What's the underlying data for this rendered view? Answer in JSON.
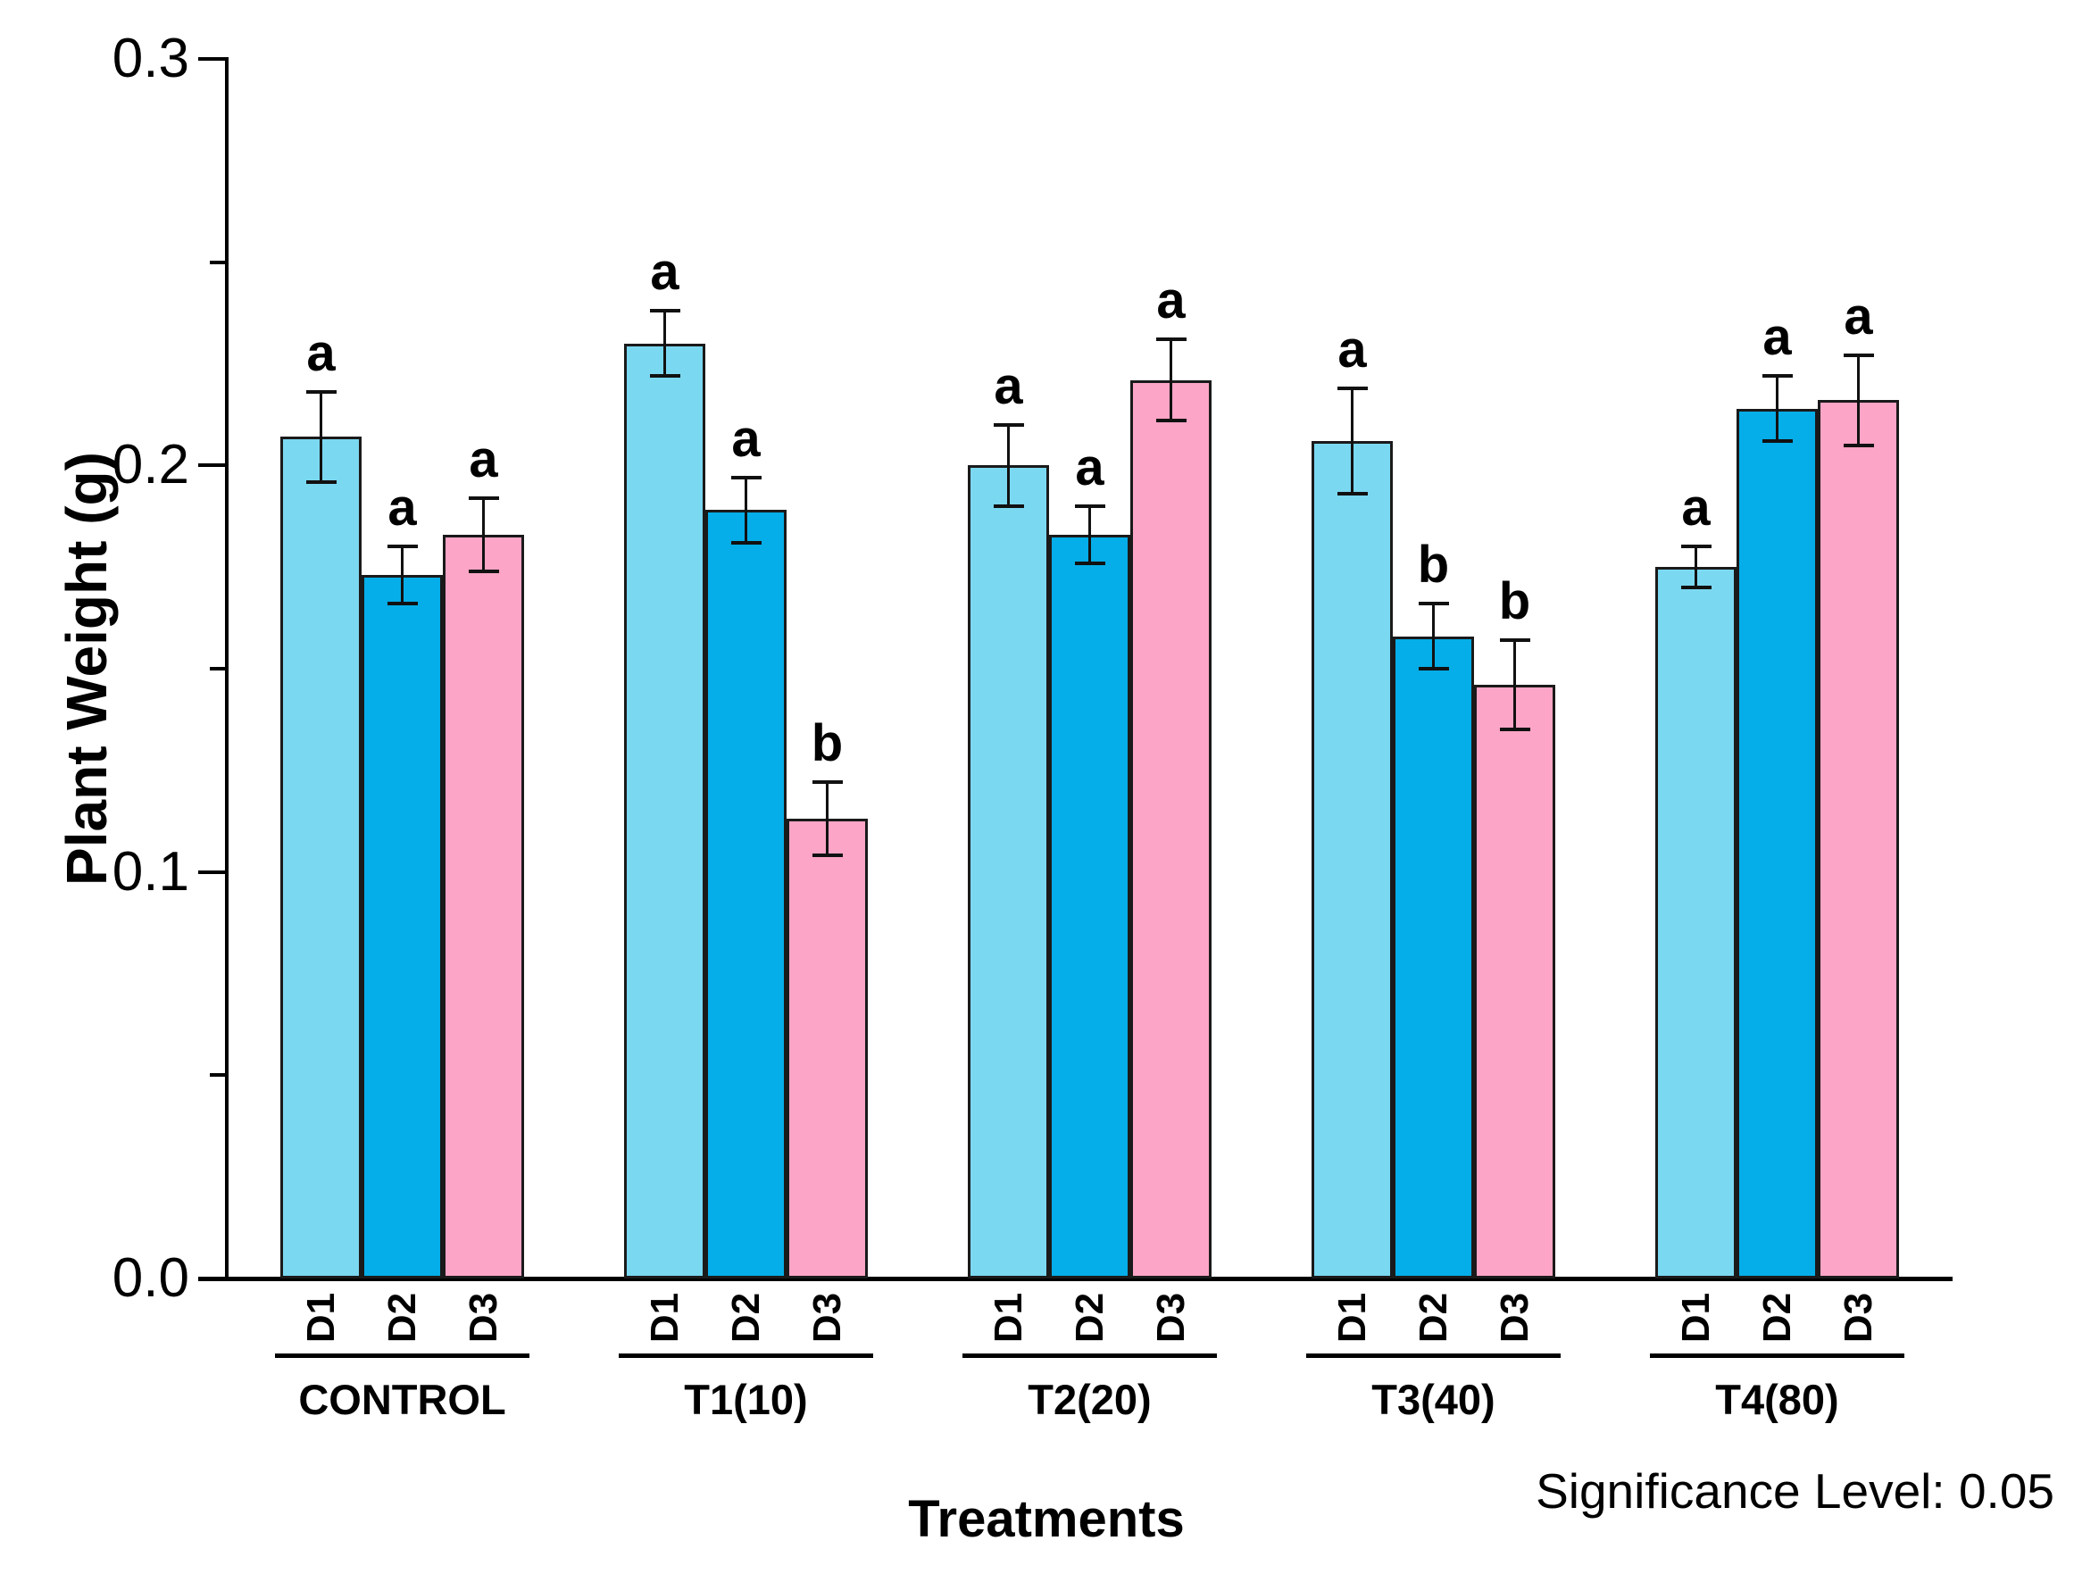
{
  "figure": {
    "background": "#ffffff",
    "axis_color": "#000000",
    "y_axis_label": "Plant Weight (g)",
    "x_axis_label": "Treatments",
    "note": "Significance Level: 0.05"
  },
  "chart_data": {
    "type": "bar",
    "title": "",
    "xlabel": "Treatments",
    "ylabel": "Plant Weight (g)",
    "ylim": [
      0,
      0.3
    ],
    "yticks": [
      0.0,
      0.1,
      0.2,
      0.3
    ],
    "ytick_labels": [
      "0.0",
      "0.1",
      "0.2",
      "0.3"
    ],
    "minor_yticks": [
      0.05,
      0.15,
      0.25
    ],
    "grid": "off",
    "legend": "none",
    "annotation": "Significance Level: 0.05",
    "categories": [
      "CONTROL",
      "T1(10)",
      "T2(20)",
      "T3(40)",
      "T4(80)"
    ],
    "bar_labels": [
      "D1",
      "D2",
      "D3"
    ],
    "series": [
      {
        "name": "D1",
        "color": "#7BD8F1",
        "values": [
          0.207,
          0.23,
          0.2,
          0.206,
          0.175
        ],
        "errors": [
          0.011,
          0.008,
          0.01,
          0.013,
          0.005
        ],
        "letters": [
          "a",
          "a",
          "a",
          "a",
          "a"
        ]
      },
      {
        "name": "D2",
        "color": "#05AEE8",
        "values": [
          0.173,
          0.189,
          0.183,
          0.158,
          0.214
        ],
        "errors": [
          0.007,
          0.008,
          0.007,
          0.008,
          0.008
        ],
        "letters": [
          "a",
          "a",
          "a",
          "b",
          "a"
        ]
      },
      {
        "name": "D3",
        "color": "#FDA5C6",
        "values": [
          0.183,
          0.113,
          0.221,
          0.146,
          0.216
        ],
        "errors": [
          0.009,
          0.009,
          0.01,
          0.011,
          0.011
        ],
        "letters": [
          "a",
          "b",
          "a",
          "b",
          "a"
        ]
      }
    ]
  }
}
